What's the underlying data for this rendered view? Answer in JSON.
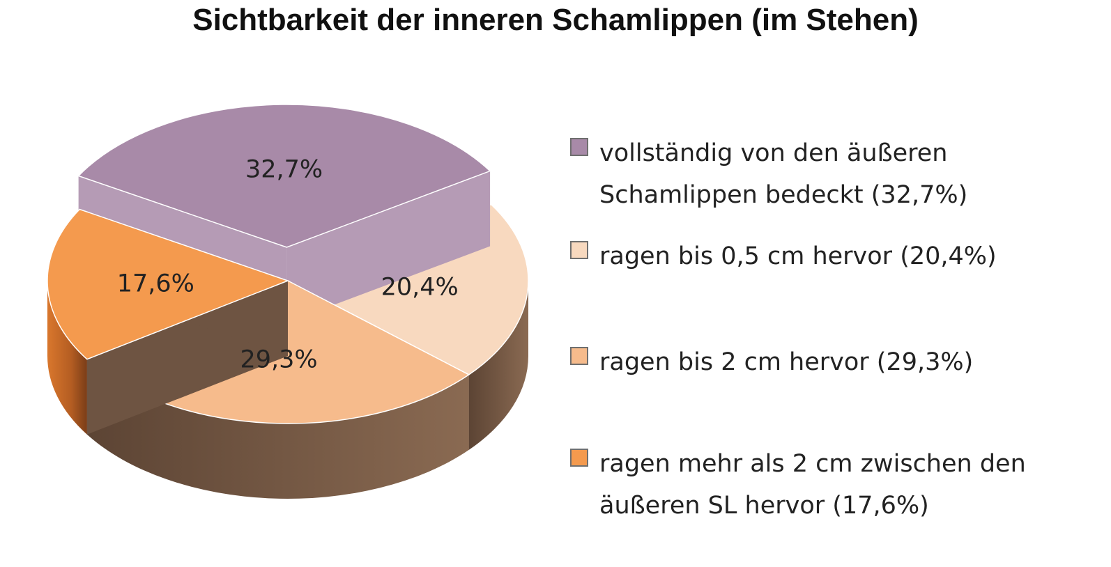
{
  "chart_data": {
    "type": "pie",
    "title": "Sichtbarkeit der inneren Schamlippen (im Stehen)",
    "slices": [
      {
        "label": "vollständig von den äußeren Schamlippen bedeckt (32,7%)",
        "value": 32.7,
        "data_label": "32,7%",
        "color": "#a88aa8",
        "exploded": true
      },
      {
        "label": "ragen bis 0,5 cm hervor (20,4%)",
        "value": 20.4,
        "data_label": "20,4%",
        "color": "#f8d9bf"
      },
      {
        "label": "ragen bis 2 cm hervor (29,3%)",
        "value": 29.3,
        "data_label": "29,3%",
        "color": "#f6bb8c"
      },
      {
        "label": "ragen mehr als 2 cm zwischen den äußeren SL hervor (17,6%)",
        "value": 17.6,
        "data_label": "17,6%",
        "color": "#f49a4e"
      }
    ],
    "legend_position": "right"
  },
  "legend": {
    "items": [
      {
        "text": "vollständig von den äußeren\nSchamlippen bedeckt (32,7%)",
        "color": "#a88aa8"
      },
      {
        "text": "ragen bis 0,5 cm hervor (20,4%)",
        "color": "#f8d9bf"
      },
      {
        "text": "ragen bis 2 cm hervor (29,3%)",
        "color": "#f6bb8c"
      },
      {
        "text": "ragen mehr als 2 cm zwischen den\näußeren SL hervor (17,6%)",
        "color": "#f49a4e"
      }
    ]
  }
}
